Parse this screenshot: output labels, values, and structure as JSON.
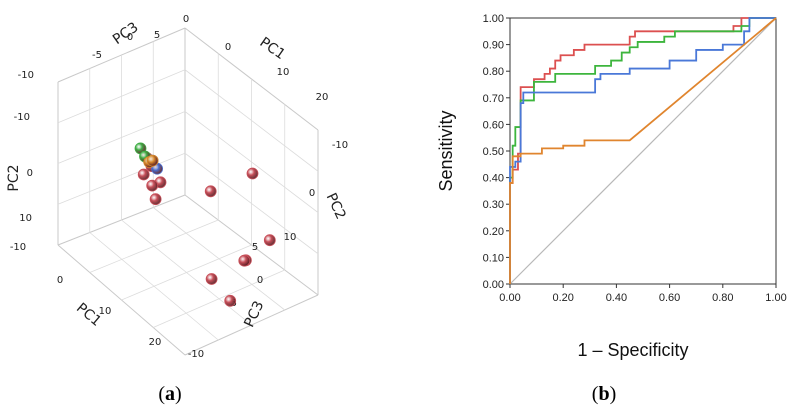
{
  "panels": [
    {
      "prefix": "(",
      "letter": "a",
      "suffix": ")"
    },
    {
      "prefix": "(",
      "letter": "b",
      "suffix": ")"
    }
  ],
  "colors": {
    "red": "#dc5050",
    "green": "#3db53d",
    "blue": "#4a78d8",
    "orange": "#e0852e",
    "diagonal": "#b8b8b8",
    "pca_red": "#c8505a",
    "pca_green": "#3fae45",
    "pca_blue": "#4b6fd0",
    "pca_orange": "#d98a2b"
  },
  "chart_data": [
    {
      "type": "scatter",
      "projection": "3d",
      "axes": [
        {
          "label": "PC1",
          "ticks": [
            "0",
            "10",
            "20"
          ],
          "second_ticks": [
            "0",
            "10",
            "20"
          ]
        },
        {
          "label": "PC2",
          "ticks": [
            "-10",
            "0",
            "10"
          ],
          "second_ticks": [
            "-10",
            "0",
            "10"
          ]
        },
        {
          "label": "PC3",
          "ticks": [
            "-10",
            "-5",
            "0",
            "5"
          ],
          "second_ticks": [
            "-10",
            "-5",
            "0",
            "5"
          ]
        }
      ],
      "top_ticks": [
        "-10",
        "-5",
        "0",
        "5",
        "0"
      ],
      "top_pc1_ticks": [
        "-10",
        "0",
        "10",
        "20"
      ],
      "left_pc2_ticks": [
        "-10",
        "0",
        "10"
      ],
      "right_pc2_ticks": [
        "-10",
        "0",
        "10"
      ],
      "right_pc3_ticks": [
        "5",
        "0",
        "-5",
        "-10"
      ],
      "bottom_pc1_ticks": [
        "0",
        "10",
        "20"
      ],
      "grid": true,
      "points": [
        {
          "group": "red",
          "pc1": 0.0,
          "pc2": 0.0,
          "pc3": 0.0
        },
        {
          "group": "red",
          "pc1": 20.0,
          "pc2": -5.0,
          "pc3": 3.0
        },
        {
          "group": "red",
          "pc1": 13.0,
          "pc2": 1.0,
          "pc3": 2.0
        },
        {
          "group": "red",
          "pc1": 22.0,
          "pc2": 4.0,
          "pc3": -1.0
        },
        {
          "group": "red",
          "pc1": 18.0,
          "pc2": 9.0,
          "pc3": -2.0
        },
        {
          "group": "red",
          "pc1": 17.0,
          "pc2": 9.0,
          "pc3": -3.0
        },
        {
          "group": "red",
          "pc1": 10.0,
          "pc2": 14.0,
          "pc3": -6.0
        },
        {
          "group": "red",
          "pc1": 13.0,
          "pc2": 16.0,
          "pc3": -7.0
        },
        {
          "group": "red",
          "pc1": 3.0,
          "pc2": 3.0,
          "pc3": 0.0
        },
        {
          "group": "red",
          "pc1": 2.0,
          "pc2": 6.0,
          "pc3": -1.0
        },
        {
          "group": "red",
          "pc1": 1.0,
          "pc2": 4.0,
          "pc3": -1.0
        },
        {
          "group": "red",
          "pc1": 0.0,
          "pc2": 3.0,
          "pc3": 0.0
        },
        {
          "group": "red",
          "pc1": 1.0,
          "pc2": 1.0,
          "pc3": 0.0
        },
        {
          "group": "green",
          "pc1": -1.0,
          "pc2": -1.0,
          "pc3": 0.5
        },
        {
          "group": "green",
          "pc1": 0.0,
          "pc2": 0.0,
          "pc3": 0.5
        },
        {
          "group": "blue",
          "pc1": 1.0,
          "pc2": 0.0,
          "pc3": 0.0
        },
        {
          "group": "blue",
          "pc1": 2.0,
          "pc2": 1.0,
          "pc3": 0.0
        },
        {
          "group": "orange",
          "pc1": 0.5,
          "pc2": 0.5,
          "pc3": 0.0
        },
        {
          "group": "orange",
          "pc1": 1.0,
          "pc2": 0.0,
          "pc3": 0.0
        }
      ]
    },
    {
      "type": "line",
      "xlabel": "1 – Specificity",
      "ylabel": "Sensitivity",
      "xlim": [
        0,
        1
      ],
      "ylim": [
        0,
        1
      ],
      "xticks": [
        "0.00",
        "0.20",
        "0.40",
        "0.60",
        "0.80",
        "1.00"
      ],
      "yticks": [
        "0.00",
        "0.10",
        "0.20",
        "0.30",
        "0.40",
        "0.50",
        "0.60",
        "0.70",
        "0.80",
        "0.90",
        "1.00"
      ],
      "grid": false,
      "series": [
        {
          "color": "red",
          "points": [
            [
              0,
              0
            ],
            [
              0,
              0.38
            ],
            [
              0.01,
              0.38
            ],
            [
              0.01,
              0.43
            ],
            [
              0.03,
              0.43
            ],
            [
              0.03,
              0.49
            ],
            [
              0.04,
              0.49
            ],
            [
              0.04,
              0.74
            ],
            [
              0.09,
              0.74
            ],
            [
              0.09,
              0.77
            ],
            [
              0.13,
              0.77
            ],
            [
              0.13,
              0.79
            ],
            [
              0.15,
              0.79
            ],
            [
              0.15,
              0.81
            ],
            [
              0.17,
              0.81
            ],
            [
              0.17,
              0.84
            ],
            [
              0.19,
              0.84
            ],
            [
              0.19,
              0.86
            ],
            [
              0.24,
              0.86
            ],
            [
              0.24,
              0.88
            ],
            [
              0.28,
              0.88
            ],
            [
              0.28,
              0.9
            ],
            [
              0.45,
              0.9
            ],
            [
              0.45,
              0.93
            ],
            [
              0.47,
              0.93
            ],
            [
              0.47,
              0.95
            ],
            [
              0.84,
              0.95
            ],
            [
              0.84,
              0.97
            ],
            [
              0.87,
              0.97
            ],
            [
              0.87,
              1.0
            ],
            [
              1.0,
              1.0
            ]
          ]
        },
        {
          "color": "green",
          "points": [
            [
              0,
              0
            ],
            [
              0,
              0.4
            ],
            [
              0.01,
              0.4
            ],
            [
              0.01,
              0.52
            ],
            [
              0.02,
              0.52
            ],
            [
              0.02,
              0.59
            ],
            [
              0.04,
              0.59
            ],
            [
              0.04,
              0.69
            ],
            [
              0.09,
              0.69
            ],
            [
              0.09,
              0.76
            ],
            [
              0.17,
              0.76
            ],
            [
              0.17,
              0.79
            ],
            [
              0.32,
              0.79
            ],
            [
              0.32,
              0.82
            ],
            [
              0.38,
              0.82
            ],
            [
              0.38,
              0.84
            ],
            [
              0.42,
              0.84
            ],
            [
              0.42,
              0.87
            ],
            [
              0.45,
              0.87
            ],
            [
              0.45,
              0.89
            ],
            [
              0.48,
              0.89
            ],
            [
              0.48,
              0.91
            ],
            [
              0.58,
              0.91
            ],
            [
              0.58,
              0.93
            ],
            [
              0.62,
              0.93
            ],
            [
              0.62,
              0.95
            ],
            [
              0.87,
              0.95
            ],
            [
              0.87,
              0.97
            ],
            [
              0.9,
              0.97
            ],
            [
              0.9,
              1.0
            ],
            [
              1.0,
              1.0
            ]
          ]
        },
        {
          "color": "blue",
          "points": [
            [
              0,
              0
            ],
            [
              0,
              0.44
            ],
            [
              0.02,
              0.44
            ],
            [
              0.02,
              0.46
            ],
            [
              0.04,
              0.46
            ],
            [
              0.04,
              0.68
            ],
            [
              0.05,
              0.68
            ],
            [
              0.05,
              0.72
            ],
            [
              0.32,
              0.72
            ],
            [
              0.32,
              0.77
            ],
            [
              0.34,
              0.77
            ],
            [
              0.34,
              0.79
            ],
            [
              0.45,
              0.79
            ],
            [
              0.45,
              0.81
            ],
            [
              0.6,
              0.81
            ],
            [
              0.6,
              0.84
            ],
            [
              0.7,
              0.84
            ],
            [
              0.7,
              0.88
            ],
            [
              0.8,
              0.88
            ],
            [
              0.8,
              0.9
            ],
            [
              0.88,
              0.9
            ],
            [
              0.88,
              0.95
            ],
            [
              0.9,
              0.95
            ],
            [
              0.9,
              1.0
            ],
            [
              1.0,
              1.0
            ]
          ]
        },
        {
          "color": "orange",
          "points": [
            [
              0,
              0
            ],
            [
              0,
              0.38
            ],
            [
              0.01,
              0.38
            ],
            [
              0.01,
              0.48
            ],
            [
              0.04,
              0.48
            ],
            [
              0.04,
              0.49
            ],
            [
              0.12,
              0.49
            ],
            [
              0.12,
              0.51
            ],
            [
              0.2,
              0.51
            ],
            [
              0.2,
              0.52
            ],
            [
              0.28,
              0.52
            ],
            [
              0.28,
              0.54
            ],
            [
              0.45,
              0.54
            ],
            [
              1.0,
              1.0
            ]
          ]
        }
      ],
      "reference_line": {
        "color": "diagonal",
        "points": [
          [
            0,
            0
          ],
          [
            1,
            1
          ]
        ]
      }
    }
  ]
}
